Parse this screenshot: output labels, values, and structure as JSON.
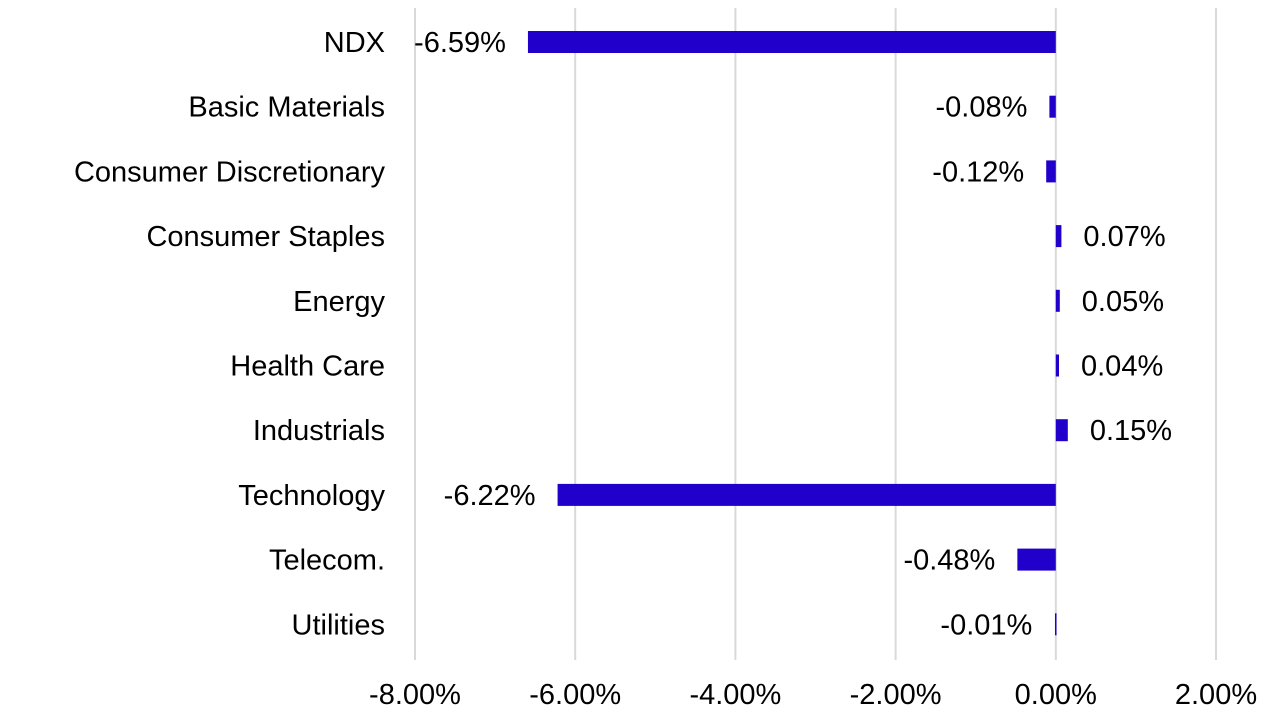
{
  "chart_data": {
    "type": "bar",
    "orientation": "horizontal",
    "categories": [
      "NDX",
      "Basic Materials",
      "Consumer Discretionary",
      "Consumer Staples",
      "Energy",
      "Health Care",
      "Industrials",
      "Technology",
      "Telecom.",
      "Utilities"
    ],
    "values": [
      -6.59,
      -0.08,
      -0.12,
      0.07,
      0.05,
      0.04,
      0.15,
      -6.22,
      -0.48,
      -0.01
    ],
    "data_labels": [
      "-6.59%",
      "-0.08%",
      "-0.12%",
      "0.07%",
      "0.05%",
      "0.04%",
      "0.15%",
      "-6.22%",
      "-0.48%",
      "-0.01%"
    ],
    "x_ticks": [
      -8,
      -6,
      -4,
      -2,
      0,
      2
    ],
    "x_tick_labels": [
      "-8.00%",
      "-6.00%",
      "-4.00%",
      "-2.00%",
      "0.00%",
      "2.00%"
    ],
    "xlim": [
      -8,
      2
    ],
    "grid": true,
    "bar_color": "#2200cc",
    "grid_color": "#d9d9d9"
  }
}
